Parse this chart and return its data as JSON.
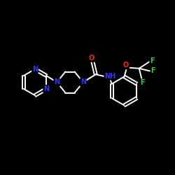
{
  "background_color": "#000000",
  "bond_color": "#ffffff",
  "atom_colors": {
    "N": "#3333ff",
    "O": "#ff2200",
    "F": "#33cc33",
    "C": "#ffffff"
  },
  "figsize": [
    2.5,
    2.5
  ],
  "dpi": 100
}
